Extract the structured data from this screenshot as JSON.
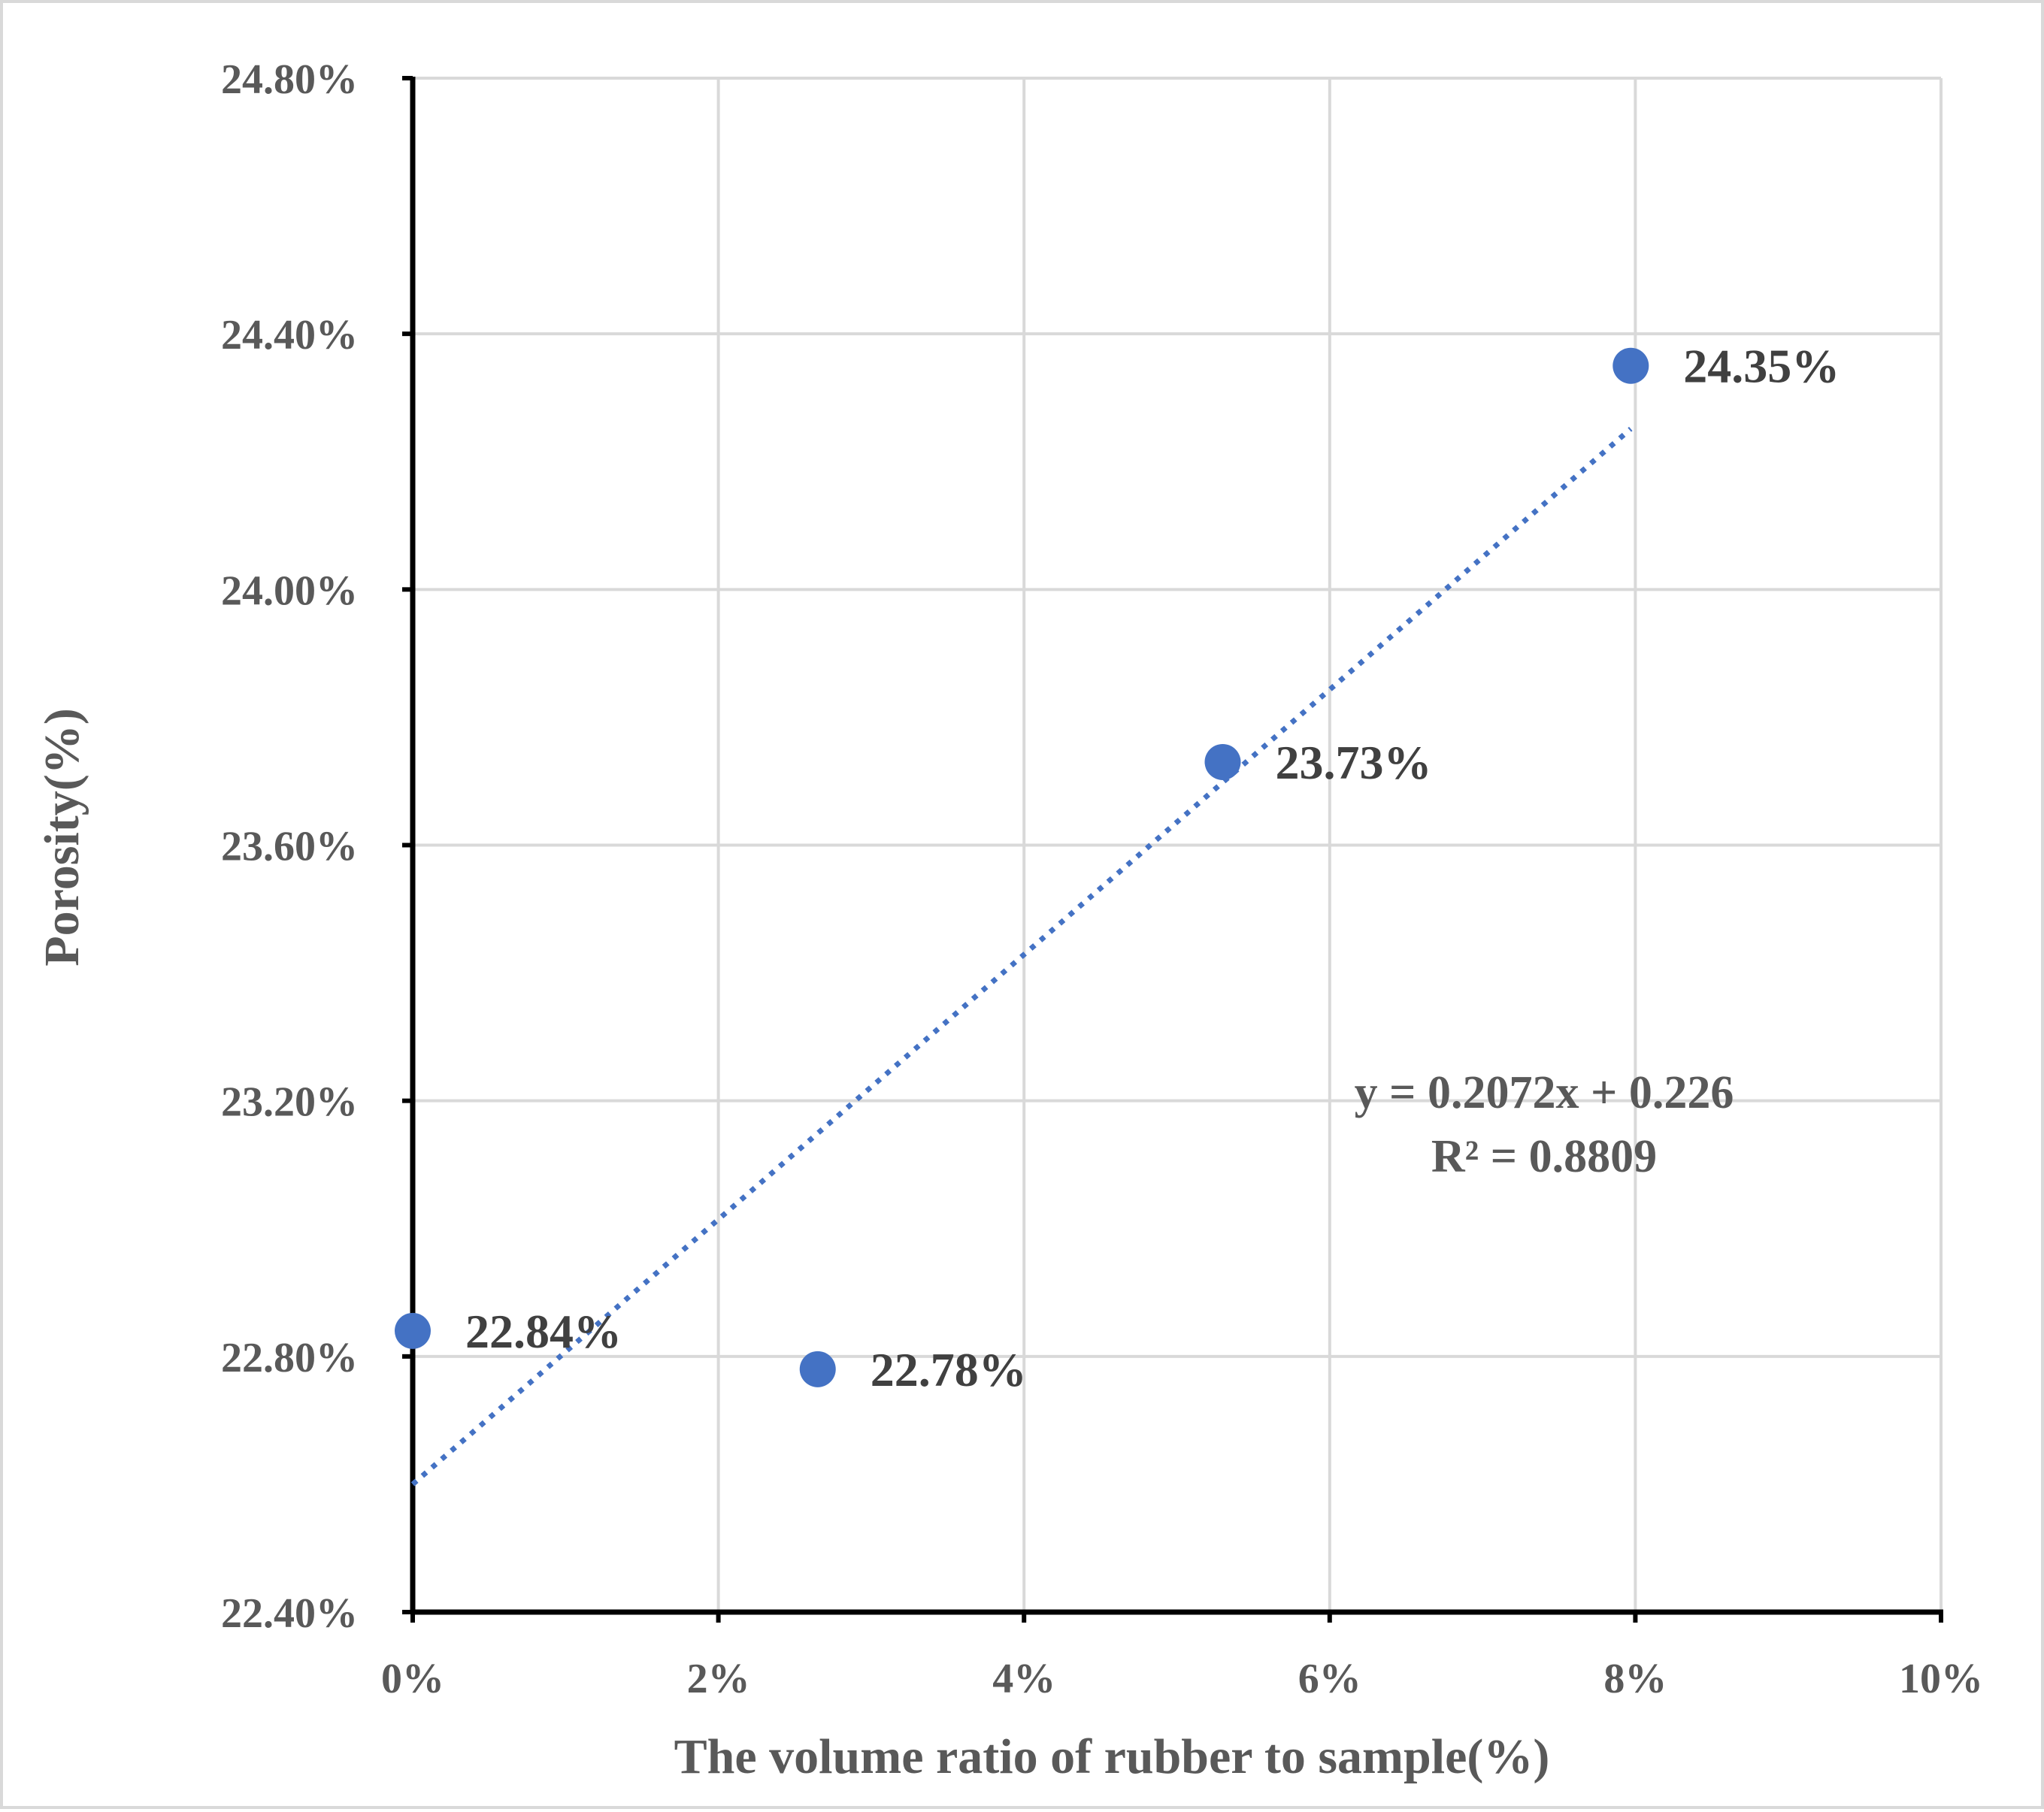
{
  "chart_data": {
    "type": "scatter",
    "xlabel": "The volume ratio of  rubber to sample(%)",
    "ylabel": "Porosity(%)",
    "xlim": [
      0,
      0.1
    ],
    "ylim": [
      0.224,
      0.248
    ],
    "x_ticks": [
      {
        "value": 0.0,
        "label": "0%"
      },
      {
        "value": 0.02,
        "label": "2%"
      },
      {
        "value": 0.04,
        "label": "4%"
      },
      {
        "value": 0.06,
        "label": "6%"
      },
      {
        "value": 0.08,
        "label": "8%"
      },
      {
        "value": 0.1,
        "label": "10%"
      }
    ],
    "y_ticks": [
      {
        "value": 0.224,
        "label": "22.40%"
      },
      {
        "value": 0.228,
        "label": "22.80%"
      },
      {
        "value": 0.232,
        "label": "23.20%"
      },
      {
        "value": 0.236,
        "label": "23.60%"
      },
      {
        "value": 0.24,
        "label": "24.00%"
      },
      {
        "value": 0.244,
        "label": "24.40%"
      },
      {
        "value": 0.248,
        "label": "24.80%"
      }
    ],
    "grid": true,
    "series": [
      {
        "color": "#4472c4",
        "points": [
          {
            "x": 0.0,
            "y": 0.2284,
            "label": "22.84%"
          },
          {
            "x": 0.0265,
            "y": 0.2278,
            "label": "22.78%"
          },
          {
            "x": 0.053,
            "y": 0.2373,
            "label": "23.73%"
          },
          {
            "x": 0.0797,
            "y": 0.2435,
            "label": "24.35%"
          }
        ]
      }
    ],
    "trendline": {
      "type": "linear",
      "slope": 0.2072,
      "intercept": 0.226,
      "x_range": [
        0.0,
        0.0797
      ],
      "style": "dotted",
      "color": "#4472c4",
      "equation": "y = 0.2072x + 0.226",
      "r_squared": "R² = 0.8809"
    }
  }
}
